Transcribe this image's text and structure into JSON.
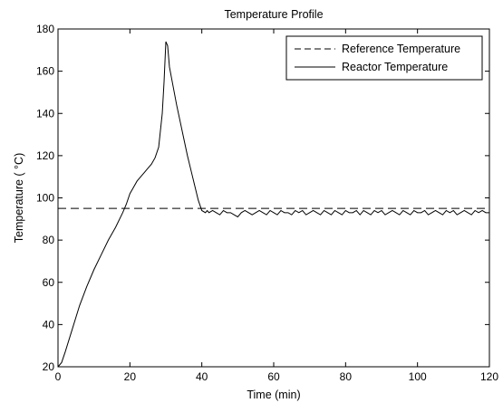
{
  "chart_data": {
    "type": "line",
    "title": "Temperature Profile",
    "xlabel": "Time (min)",
    "ylabel": "Temperature ( °C)",
    "xlim": [
      0,
      120
    ],
    "ylim": [
      20,
      180
    ],
    "xticks": [
      0,
      20,
      40,
      60,
      80,
      100,
      120
    ],
    "yticks": [
      20,
      40,
      60,
      80,
      100,
      120,
      140,
      160,
      180
    ],
    "grid": false,
    "legend_position": "top-right",
    "series": [
      {
        "name": "Reference Temperature",
        "style": "dashed",
        "color": "#000000",
        "x": [
          0,
          120
        ],
        "y": [
          95,
          95
        ]
      },
      {
        "name": "Reactor Temperature",
        "style": "solid",
        "color": "#000000",
        "x": [
          0,
          1,
          2,
          4,
          6,
          8,
          10,
          12,
          14,
          16,
          18,
          19,
          20,
          21,
          22,
          23,
          24,
          25,
          26,
          27,
          28,
          29,
          29.5,
          30,
          30.5,
          31,
          32,
          33,
          34,
          35,
          36,
          37,
          38,
          39,
          40,
          41,
          41.5,
          42,
          43,
          44,
          45,
          46,
          47,
          48,
          49,
          50,
          51,
          52,
          53,
          54,
          55,
          56,
          57,
          58,
          59,
          60,
          61,
          62,
          63,
          64,
          65,
          66,
          67,
          68,
          69,
          70,
          71,
          72,
          73,
          74,
          75,
          76,
          77,
          78,
          79,
          80,
          81,
          82,
          83,
          84,
          85,
          86,
          87,
          88,
          89,
          90,
          91,
          92,
          93,
          94,
          95,
          96,
          97,
          98,
          99,
          100,
          101,
          102,
          103,
          104,
          105,
          106,
          107,
          108,
          109,
          110,
          111,
          112,
          113,
          114,
          115,
          116,
          117,
          118,
          119,
          120
        ],
        "y": [
          20,
          22,
          27,
          38,
          49,
          58,
          66,
          73,
          80,
          86,
          93,
          97,
          102,
          105,
          108,
          110,
          112,
          114,
          116,
          119,
          124,
          140,
          155,
          174,
          172,
          162,
          153,
          144,
          136,
          128,
          120,
          113,
          106,
          99,
          94,
          93,
          94,
          93,
          94,
          93,
          92,
          94,
          93,
          93,
          92,
          91,
          93,
          94,
          93,
          92,
          93,
          94,
          93,
          92,
          94,
          93,
          92,
          94,
          93,
          93,
          92,
          94,
          93,
          94,
          92,
          93,
          94,
          93,
          92,
          94,
          93,
          92,
          94,
          93,
          92,
          94,
          93,
          93,
          94,
          92,
          94,
          93,
          92,
          94,
          93,
          94,
          92,
          93,
          94,
          93,
          92,
          94,
          93,
          92,
          94,
          93,
          93,
          94,
          92,
          93,
          94,
          93,
          92,
          94,
          93,
          94,
          92,
          93,
          94,
          93,
          92,
          94,
          93,
          94,
          93,
          93
        ]
      }
    ]
  }
}
